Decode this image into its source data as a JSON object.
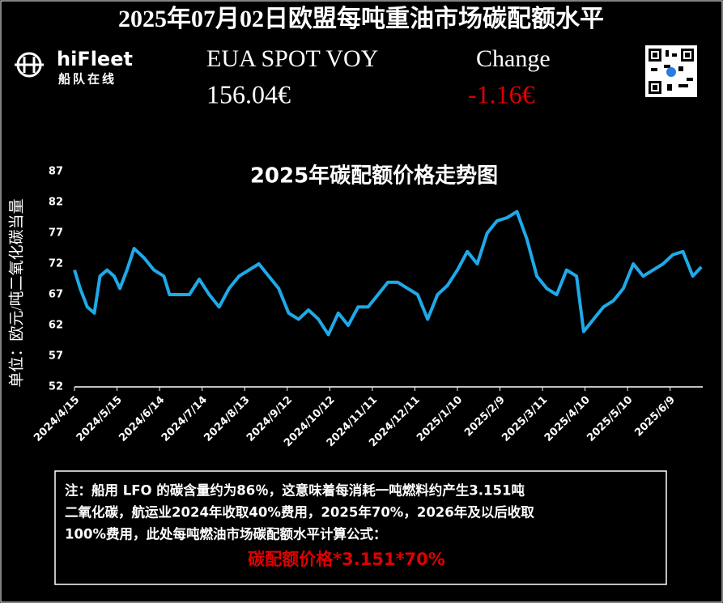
{
  "header": {
    "title": "2025年07月02日欧盟每吨重油市场碳配额水平",
    "brand": "hiFleet",
    "brand_sub": "船队在线",
    "price_label": "EUA SPOT VOY",
    "price": "156.04€",
    "change_label": "Change",
    "change": "-1.16€"
  },
  "chart_data": {
    "type": "line",
    "title": "2025年碳配额价格走势图",
    "y_label": "单位：欧元/吨二氧化碳当量",
    "x": [
      "2024/4/15",
      "2024/4/19",
      "2024/4/24",
      "2024/4/29",
      "2024/5/3",
      "2024/5/8",
      "2024/5/13",
      "2024/5/17",
      "2024/5/22",
      "2024/5/27",
      "2024/6/3",
      "2024/6/10",
      "2024/6/17",
      "2024/6/21",
      "2024/6/28",
      "2024/7/5",
      "2024/7/12",
      "2024/7/19",
      "2024/7/26",
      "2024/8/2",
      "2024/8/9",
      "2024/8/16",
      "2024/8/23",
      "2024/8/30",
      "2024/9/6",
      "2024/9/13",
      "2024/9/20",
      "2024/9/27",
      "2024/10/4",
      "2024/10/11",
      "2024/10/18",
      "2024/10/25",
      "2024/11/1",
      "2024/11/8",
      "2024/11/15",
      "2024/11/22",
      "2024/11/29",
      "2024/12/6",
      "2024/12/13",
      "2024/12/20",
      "2024/12/27",
      "2025/1/3",
      "2025/1/10",
      "2025/1/17",
      "2025/1/24",
      "2025/1/31",
      "2025/2/7",
      "2025/2/14",
      "2025/2/21",
      "2025/2/28",
      "2025/3/7",
      "2025/3/14",
      "2025/3/21",
      "2025/3/28",
      "2025/4/4",
      "2025/4/9",
      "2025/4/16",
      "2025/4/23",
      "2025/4/30",
      "2025/5/7",
      "2025/5/14",
      "2025/5/21",
      "2025/5/28",
      "2025/6/4",
      "2025/6/11",
      "2025/6/18",
      "2025/6/25",
      "2025/7/1"
    ],
    "series": [
      {
        "name": "EUA",
        "color": "#1fa9e8",
        "values": [
          71,
          68,
          65,
          64,
          70,
          71,
          70,
          68,
          71,
          74.5,
          73,
          71,
          70,
          67,
          67,
          67,
          69.5,
          67,
          65,
          68,
          70,
          71,
          72,
          70,
          68,
          64,
          63,
          64.5,
          63,
          60.5,
          64,
          62,
          65,
          65,
          67,
          69,
          69,
          68,
          67,
          63,
          67,
          68.5,
          71,
          74,
          72,
          77,
          79,
          79.5,
          80.5,
          76,
          70,
          68,
          67,
          71,
          70,
          61,
          63,
          65,
          66,
          68,
          72,
          70,
          71,
          72,
          73.5,
          74,
          70,
          71.5
        ]
      }
    ],
    "xlim": [
      "2024/4/15",
      "2025/7/2"
    ],
    "xticks": [
      "2024/4/15",
      "2024/5/15",
      "2024/6/14",
      "2024/7/14",
      "2024/8/13",
      "2024/9/12",
      "2024/10/12",
      "2024/11/11",
      "2024/12/11",
      "2025/1/10",
      "2025/2/9",
      "2025/3/11",
      "2025/4/10",
      "2025/5/10",
      "2025/6/9"
    ],
    "ylim": [
      52,
      87
    ],
    "yticks": [
      52,
      57,
      62,
      67,
      72,
      77,
      82,
      87
    ]
  },
  "note": {
    "lines": [
      "注：船用 LFO 的碳含量约为86％，这意味着每消耗一吨燃料约产生3.151吨",
      "二氧化碳，航运业2024年收取40%费用，2025年70%，2026年及以后收取",
      "100%费用，此处每吨燃油市场碳配额水平计算公式："
    ],
    "formula": "碳配额价格*3.151*70%"
  }
}
